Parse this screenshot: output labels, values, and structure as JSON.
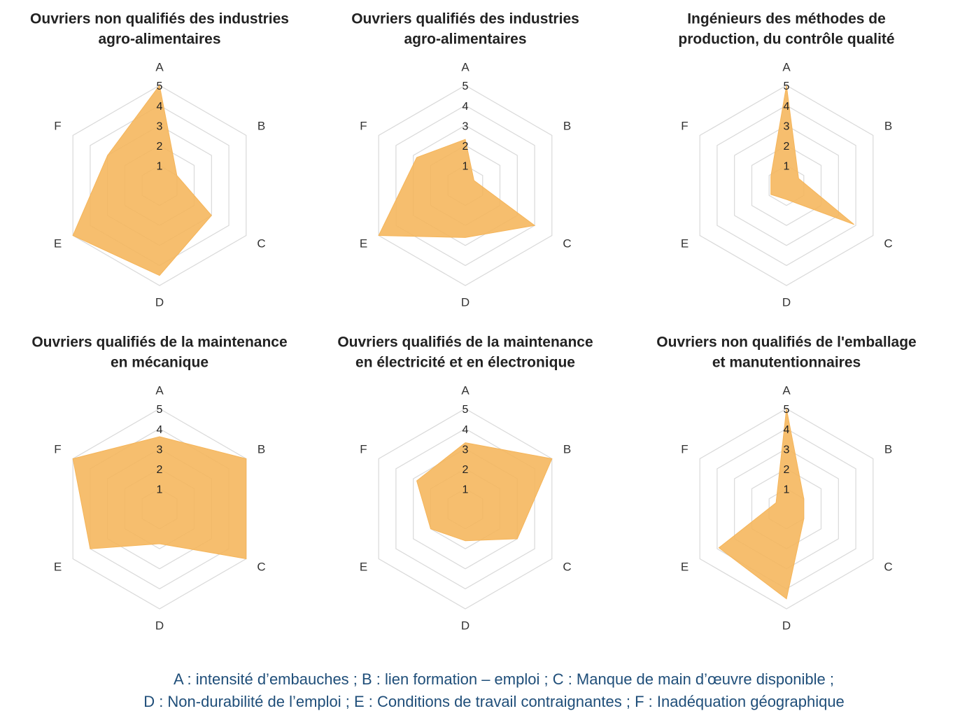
{
  "chart_data": [
    {
      "type": "radar",
      "title": [
        "Ouvriers non qualifiés des industries",
        "agro-alimentaires"
      ],
      "categories": [
        "A",
        "B",
        "C",
        "D",
        "E",
        "F"
      ],
      "values": [
        5,
        1,
        3,
        4.5,
        5,
        3
      ],
      "color": "#f5b55a",
      "rlim": [
        0,
        5
      ],
      "rticks": [
        1,
        2,
        3,
        4,
        5
      ]
    },
    {
      "type": "radar",
      "title": [
        "Ouvriers qualifiés des industries",
        "agro-alimentaires"
      ],
      "categories": [
        "A",
        "B",
        "C",
        "D",
        "E",
        "F"
      ],
      "values": [
        2.3,
        0.5,
        4,
        2.6,
        5,
        2.8
      ],
      "color": "#f5b55a",
      "rlim": [
        0,
        5
      ],
      "rticks": [
        1,
        2,
        3,
        4,
        5
      ]
    },
    {
      "type": "radar",
      "title": [
        "Ingénieurs des méthodes de",
        "production, du contrôle qualité"
      ],
      "categories": [
        "A",
        "B",
        "C",
        "D",
        "E",
        "F"
      ],
      "values": [
        5,
        0.7,
        3.9,
        0.7,
        0.9,
        0.9
      ],
      "color": "#f5b55a",
      "rlim": [
        0,
        5
      ],
      "rticks": [
        1,
        2,
        3,
        4,
        5
      ]
    },
    {
      "type": "radar",
      "title": [
        "Ouvriers qualifiés de la maintenance",
        "en mécanique"
      ],
      "categories": [
        "A",
        "B",
        "C",
        "D",
        "E",
        "F"
      ],
      "values": [
        3.6,
        5,
        5,
        1.75,
        4,
        5
      ],
      "color": "#f5b55a",
      "rlim": [
        0,
        5
      ],
      "rticks": [
        1,
        2,
        3,
        4,
        5
      ]
    },
    {
      "type": "radar",
      "title": [
        "Ouvriers qualifiés de la maintenance",
        "en électricité et en électronique"
      ],
      "categories": [
        "A",
        "B",
        "C",
        "D",
        "E",
        "F"
      ],
      "values": [
        3.3,
        5,
        3,
        1.6,
        2,
        2.8
      ],
      "color": "#f5b55a",
      "rlim": [
        0,
        5
      ],
      "rticks": [
        1,
        2,
        3,
        4,
        5
      ]
    },
    {
      "type": "radar",
      "title": [
        "Ouvriers non qualifiés de l'emballage",
        "et manutentionnaires"
      ],
      "categories": [
        "A",
        "B",
        "C",
        "D",
        "E",
        "F"
      ],
      "values": [
        5,
        1,
        1,
        4.5,
        3.9,
        0.6
      ],
      "color": "#f5b55a",
      "rlim": [
        0,
        5
      ],
      "rticks": [
        1,
        2,
        3,
        4,
        5
      ]
    }
  ],
  "caption": [
    "A : intensité d’embauches ; B : lien formation – emploi ; C : Manque de main d’œuvre disponible ;",
    "D : Non-durabilité de l’emploi ; E : Conditions de travail contraignantes ; F : Inadéquation géographique"
  ]
}
